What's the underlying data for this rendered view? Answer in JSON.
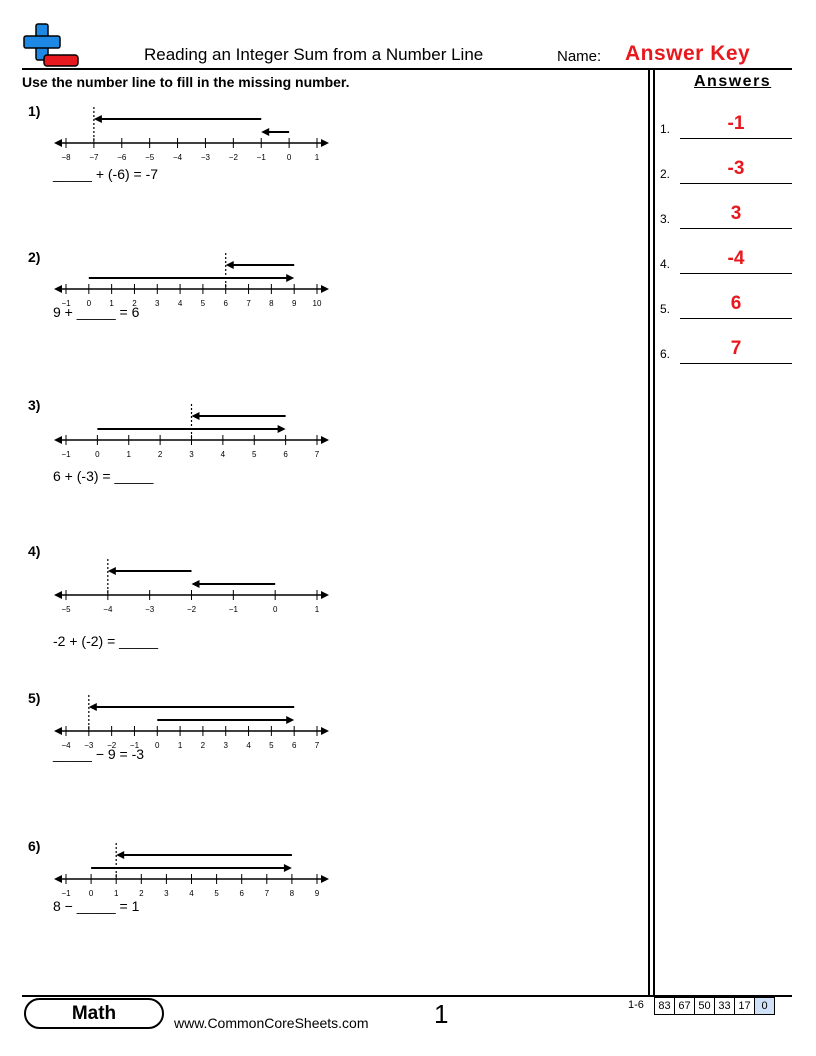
{
  "header": {
    "title": "Reading an Integer Sum from a Number Line",
    "name_label": "Name:",
    "answer_key": "Answer Key"
  },
  "instructions": "Use the number line to fill in the missing number.",
  "answers": {
    "heading": "Answers",
    "items": [
      {
        "num": "1.",
        "value": "-1"
      },
      {
        "num": "2.",
        "value": "-3"
      },
      {
        "num": "3.",
        "value": "3"
      },
      {
        "num": "4.",
        "value": "-4"
      },
      {
        "num": "5.",
        "value": "6"
      },
      {
        "num": "6.",
        "value": "7"
      }
    ]
  },
  "problems": [
    {
      "label": "1)",
      "equation": "_____ + (-6) = -7",
      "number_line": {
        "min": -8,
        "max": 1,
        "ticks": [
          "−8",
          "−7",
          "−6",
          "−5",
          "−4",
          "−3",
          "−2",
          "−1",
          "0",
          "1"
        ],
        "arrows": [
          {
            "from": -1,
            "to": -7
          },
          {
            "from": 0,
            "to": -1
          }
        ],
        "marker": -7
      }
    },
    {
      "label": "2)",
      "equation": "9 + _____ = 6",
      "number_line": {
        "min": -1,
        "max": 10,
        "ticks": [
          "−1",
          "0",
          "1",
          "2",
          "3",
          "4",
          "5",
          "6",
          "7",
          "8",
          "9",
          "10"
        ],
        "arrows": [
          {
            "from": 9,
            "to": 6
          },
          {
            "from": 0,
            "to": 9
          }
        ],
        "marker": 6
      }
    },
    {
      "label": "3)",
      "equation": "6 + (-3) = _____",
      "number_line": {
        "min": -1,
        "max": 7,
        "ticks": [
          "−1",
          "0",
          "1",
          "2",
          "3",
          "4",
          "5",
          "6",
          "7"
        ],
        "arrows": [
          {
            "from": 6,
            "to": 3
          },
          {
            "from": 0,
            "to": 6
          }
        ],
        "marker": 3
      }
    },
    {
      "label": "4)",
      "equation": "-2 + (-2) = _____",
      "number_line": {
        "min": -5,
        "max": 1,
        "ticks": [
          "−5",
          "−4",
          "−3",
          "−2",
          "−1",
          "0",
          "1"
        ],
        "arrows": [
          {
            "from": -2,
            "to": -4
          },
          {
            "from": 0,
            "to": -2
          }
        ],
        "marker": -4
      }
    },
    {
      "label": "5)",
      "equation": "_____ − 9 = -3",
      "number_line": {
        "min": -4,
        "max": 7,
        "ticks": [
          "−4",
          "−3",
          "−2",
          "−1",
          "0",
          "1",
          "2",
          "3",
          "4",
          "5",
          "6",
          "7"
        ],
        "arrows": [
          {
            "from": 6,
            "to": -3
          },
          {
            "from": 0,
            "to": 6
          }
        ],
        "marker": -3
      }
    },
    {
      "label": "6)",
      "equation": "8 − _____ = 1",
      "number_line": {
        "min": -1,
        "max": 9,
        "ticks": [
          "−1",
          "0",
          "1",
          "2",
          "3",
          "4",
          "5",
          "6",
          "7",
          "8",
          "9"
        ],
        "arrows": [
          {
            "from": 8,
            "to": 1
          },
          {
            "from": 0,
            "to": 8
          }
        ],
        "marker": 1
      }
    }
  ],
  "footer": {
    "subject": "Math",
    "url": "www.CommonCoreSheets.com",
    "page": "1",
    "score_label": "1-6",
    "scores": [
      "83",
      "67",
      "50",
      "33",
      "17",
      "0"
    ]
  },
  "colors": {
    "accent": "#e8191e",
    "logo_blue": "#1e88e5",
    "logo_red": "#e8191e",
    "score_highlight": "#cfe0f7"
  }
}
